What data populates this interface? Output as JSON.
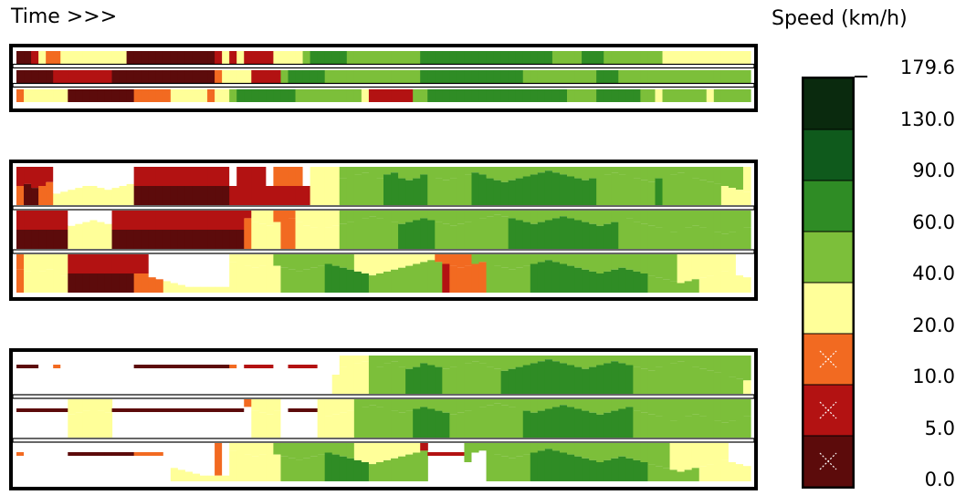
{
  "header": {
    "time_label": "Time >>>"
  },
  "legend": {
    "title": "Speed (km/h)",
    "ticks": [
      "179.6",
      "130.0",
      "90.0",
      "60.0",
      "40.0",
      "20.0",
      "10.0",
      "5.0",
      "0.0"
    ],
    "bins": [
      {
        "min": 130.0,
        "max": 179.6,
        "color": "#0a2a0e",
        "marked": false
      },
      {
        "min": 90.0,
        "max": 130.0,
        "color": "#0f5a1c",
        "marked": false
      },
      {
        "min": 60.0,
        "max": 90.0,
        "color": "#2f8c25",
        "marked": false
      },
      {
        "min": 40.0,
        "max": 60.0,
        "color": "#7cbf3a",
        "marked": false
      },
      {
        "min": 20.0,
        "max": 40.0,
        "color": "#ffff99",
        "marked": false
      },
      {
        "min": 10.0,
        "max": 20.0,
        "color": "#f26a21",
        "marked": true
      },
      {
        "min": 5.0,
        "max": 10.0,
        "color": "#b31212",
        "marked": true
      },
      {
        "min": 0.0,
        "max": 5.0,
        "color": "#5c0b0b",
        "marked": true
      }
    ]
  },
  "chart_data": {
    "type": "heatmap",
    "description_units": "speed bins per time column",
    "palette": {
      "D": "#5c0b0b",
      "R": "#b31212",
      "O": "#f26a21",
      "Y": "#ffff99",
      "L": "#7cbf3a",
      "G": "#2f8c25",
      "K": "#0f5a1c",
      "W": "#ffffff"
    },
    "columns": 100,
    "panels": [
      {
        "name": "panel-1",
        "style": "bands",
        "rows": [
          "DDRYOOYYYYYYYYYDDDDDDDDDDDDRYRYRRRRYYYYLGGGGGLLLLLLLLLLGGGGGGGGGGGGGGGGGGLLLLGGGLLLLLLLLYYYYYYYYYYYYYY",
          "DDDDDRRRRRRRRDDDDDDDDDDDDDDOYYYYRRRRLGGGGGLLLLLLLLLLLLLGGGGGGGGGGGGGGLLLLLLLLLLGGGLLLLLLLLLLLLLLLLLLYY",
          "OYYYYYYDDDDDDDDDOOOOOYYYYYOYYLGGGGGGGGLLLLLLLLLYRRRRRRLLGGGGGGGGGGGGGGGGGGGLLLLGGGGGGLLYLLLLLLYLLLLLLL"
        ]
      },
      {
        "name": "panel-2",
        "style": "profile",
        "rows": [
          {
            "top": "RRRRRWWWWWWWWWWWRRRRRRRRRRRRRWRRRRWOOOOWYYYYLLLLLLLLLLLLLLLLLLLLLLLLLLLLLLLLLLLLLLLLLLLLLLLLLLLLLLLYYYY",
            "bottom": "ODDOOYYYYYYYYYYYDDDDDDDDDDDDDRRRRRRRRRRRYYYYLLLLLLGGGGGGLLLLLLGGGGGGGGGGGGGGGGGLLLLLLLLGLLLLLLLLYYYY",
            "fill": [
              0.0,
              0.45,
              0.55,
              0.5,
              0.4,
              0.7,
              0.65,
              0.6,
              0.55,
              0.5,
              0.5,
              0.55,
              0.6,
              0.55,
              0.5,
              0.45,
              0.0,
              0.0,
              0.0,
              0.0,
              0.0,
              0.0,
              0.0,
              0.0,
              0.0,
              0.0,
              0.0,
              0.0,
              0.0,
              0.0,
              0.0,
              0.0,
              0.0,
              0.0,
              0.0,
              0.0,
              0.0,
              0.0,
              0.0,
              0.0,
              0.0,
              0.0,
              0.0,
              0.0,
              0.3,
              0.25,
              0.2,
              0.15,
              0.25,
              0.3,
              0.2,
              0.15,
              0.3,
              0.35,
              0.3,
              0.2,
              0.25,
              0.3,
              0.35,
              0.3,
              0.25,
              0.2,
              0.15,
              0.2,
              0.3,
              0.35,
              0.4,
              0.35,
              0.3,
              0.25,
              0.2,
              0.15,
              0.1,
              0.15,
              0.2,
              0.25,
              0.3,
              0.35,
              0.3,
              0.25,
              0.2,
              0.15,
              0.2,
              0.25,
              0.3,
              0.35,
              0.4,
              0.3,
              0.25,
              0.2,
              0.15,
              0.25,
              0.3,
              0.35,
              0.4,
              0.45,
              0.5,
              0.55,
              0.6,
              0.65
            ]
          },
          {
            "top": "RRRRRRRWWWWWWRRRRRRRRRRRRRRRRRRRYYYOOOYYYYYYLLLLLLLLLLLLLLLLLLLLLLLLLLLLLLLLLLLLLLLLLLLLLLLLLLLLLLLLLLY",
            "bottom": "DDDDDDDYYYYYYDDDDDDDDDDDDDDDDDDOYYYYOOYYYYYYLLLLLLLLGGGGGLLLLLLLLLLGGGGGGGGGGGGGGGLLLLLLLLLLLLLLLLLLYO",
            "fill": [
              0.0,
              0.0,
              0.0,
              0.0,
              0.0,
              0.0,
              0.0,
              0.4,
              0.35,
              0.3,
              0.25,
              0.3,
              0.35,
              0.0,
              0.0,
              0.0,
              0.0,
              0.0,
              0.0,
              0.0,
              0.0,
              0.0,
              0.0,
              0.0,
              0.0,
              0.0,
              0.0,
              0.0,
              0.0,
              0.0,
              0.0,
              0.2,
              0.3,
              0.35,
              0.4,
              0.3,
              0.25,
              0.2,
              0.3,
              0.4,
              0.45,
              0.5,
              0.45,
              0.4,
              0.35,
              0.3,
              0.25,
              0.2,
              0.15,
              0.2,
              0.25,
              0.3,
              0.35,
              0.3,
              0.25,
              0.2,
              0.25,
              0.3,
              0.35,
              0.4,
              0.35,
              0.3,
              0.25,
              0.2,
              0.15,
              0.1,
              0.15,
              0.2,
              0.25,
              0.3,
              0.35,
              0.3,
              0.25,
              0.2,
              0.15,
              0.2,
              0.25,
              0.3,
              0.35,
              0.4,
              0.35,
              0.3,
              0.25,
              0.2,
              0.3,
              0.35,
              0.4,
              0.45,
              0.5,
              0.55,
              0.5,
              0.45,
              0.4,
              0.45,
              0.5,
              0.55,
              0.6,
              0.55,
              0.5,
              0.45
            ]
          },
          {
            "top": "OYYYYYYRRRRRRRRRRRWWWWWWWWWWWYYYYYYLLLLLLLLLLLYYYYYYYYYYYOOOOOLLLLLLLLLLLLLLLLLLLLLLLLLLLLYYYYYYYYWWWWW",
            "bottom": "OYYYYYYDDDDDDDDDOOOOYYYYYYYYYYYYYYYYLLLLLLGGGGGGLLLLLLLLLLROOOOOLLLLLLGGGGGGGGGGGGGGGGLLLLLLLYYYYYYYYYYYY",
            "fill": [
              0.4,
              0.45,
              0.5,
              0.45,
              0.4,
              0.5,
              0.55,
              0.0,
              0.0,
              0.0,
              0.0,
              0.0,
              0.0,
              0.0,
              0.0,
              0.0,
              0.0,
              0.0,
              0.6,
              0.65,
              0.7,
              0.75,
              0.8,
              0.85,
              0.85,
              0.85,
              0.85,
              0.85,
              0.85,
              0.2,
              0.25,
              0.3,
              0.35,
              0.3,
              0.25,
              0.3,
              0.35,
              0.4,
              0.45,
              0.4,
              0.35,
              0.3,
              0.25,
              0.3,
              0.35,
              0.4,
              0.45,
              0.5,
              0.55,
              0.5,
              0.45,
              0.4,
              0.35,
              0.3,
              0.25,
              0.2,
              0.15,
              0.2,
              0.25,
              0.3,
              0.35,
              0.3,
              0.25,
              0.2,
              0.25,
              0.3,
              0.35,
              0.4,
              0.35,
              0.3,
              0.25,
              0.2,
              0.15,
              0.2,
              0.25,
              0.3,
              0.35,
              0.4,
              0.45,
              0.5,
              0.45,
              0.4,
              0.35,
              0.4,
              0.45,
              0.5,
              0.55,
              0.6,
              0.65,
              0.7,
              0.75,
              0.7,
              0.65,
              0.6,
              0.55,
              0.5,
              0.45,
              0.5,
              0.55,
              0.6
            ]
          }
        ]
      },
      {
        "name": "panel-3",
        "style": "profile-thin",
        "rows": [
          {
            "top": "DDDWWOWWWWWWWWWWDDDDDDDDDDDDDOWRRRRWWRRRRWWWYYYYLLLLLLLLLLLLLLLLLLLLLLLLLLLLLLLLLLLLLLLLLLLLLLLLLLLLYY",
            "bottom": "WWWWWWWWWWWWWWWWWWWWWWWWWWWWWWWWWWWWWWWWWWWYYYYYLLLLLGGGGGLLLLLLLLGGGGGGGGGGGGGGGGGGLLLLLLLLLLLLLLLYYY",
            "fill": [
              0.0,
              0.0,
              0.0,
              0.0,
              0.0,
              0.0,
              0.0,
              0.0,
              0.0,
              0.0,
              0.0,
              0.0,
              0.0,
              0.0,
              0.0,
              0.0,
              0.0,
              0.0,
              0.0,
              0.0,
              0.0,
              0.0,
              0.0,
              0.0,
              0.0,
              0.0,
              0.0,
              0.0,
              0.0,
              0.0,
              0.0,
              0.0,
              0.0,
              0.0,
              0.0,
              0.0,
              0.0,
              0.0,
              0.0,
              0.0,
              0.0,
              0.0,
              0.0,
              0.0,
              0.3,
              0.25,
              0.2,
              0.15,
              0.25,
              0.3,
              0.2,
              0.15,
              0.3,
              0.35,
              0.3,
              0.2,
              0.25,
              0.3,
              0.35,
              0.3,
              0.25,
              0.2,
              0.15,
              0.2,
              0.3,
              0.35,
              0.4,
              0.35,
              0.3,
              0.25,
              0.2,
              0.15,
              0.1,
              0.15,
              0.2,
              0.25,
              0.3,
              0.35,
              0.3,
              0.25,
              0.2,
              0.15,
              0.2,
              0.25,
              0.3,
              0.35,
              0.4,
              0.3,
              0.25,
              0.2,
              0.15,
              0.25,
              0.3,
              0.35,
              0.4,
              0.45,
              0.5,
              0.55,
              0.6,
              0.65
            ],
            "line_row": true
          },
          {
            "top": "DDDDDDDYYYYYYDDDDDDDDDDDDDDDDDDOYYYYWDDDDYYYYYLLLLLLLLLLLLLLLLLLLLLLLLLLLLLLLLLLLLLLLLLLLLLLLLLLLLLLLO",
            "bottom": "WWWWWWWYYYYYYWWWWWWWWWWWWWWWWWWWYYYYWWWWWYYYYYLLLLLLLLGGGGGLLLLLLLLLLGGGGGGGGGGGGGGGLLLLLLLLLLLLLLLLLLYW",
            "fill": [
              0.0,
              0.0,
              0.0,
              0.0,
              0.0,
              0.0,
              0.0,
              0.4,
              0.35,
              0.3,
              0.25,
              0.3,
              0.35,
              0.0,
              0.0,
              0.0,
              0.0,
              0.0,
              0.0,
              0.0,
              0.0,
              0.0,
              0.0,
              0.0,
              0.0,
              0.0,
              0.0,
              0.0,
              0.0,
              0.0,
              0.0,
              0.2,
              0.3,
              0.35,
              0.4,
              0.3,
              0.0,
              0.0,
              0.0,
              0.0,
              0.0,
              0.5,
              0.45,
              0.4,
              0.35,
              0.3,
              0.25,
              0.2,
              0.15,
              0.2,
              0.25,
              0.3,
              0.35,
              0.3,
              0.25,
              0.2,
              0.25,
              0.3,
              0.35,
              0.4,
              0.35,
              0.3,
              0.25,
              0.2,
              0.15,
              0.1,
              0.15,
              0.2,
              0.25,
              0.3,
              0.35,
              0.3,
              0.25,
              0.2,
              0.15,
              0.2,
              0.25,
              0.3,
              0.35,
              0.4,
              0.35,
              0.3,
              0.25,
              0.2,
              0.3,
              0.35,
              0.4,
              0.45,
              0.5,
              0.55,
              0.5,
              0.45,
              0.4,
              0.45,
              0.5,
              0.55,
              0.6,
              0.55,
              0.5,
              0.45
            ],
            "line_row": true
          },
          {
            "top": "OWWWWWWDDDDDDDDDOOOOWWWWWWWOWYYYYYYLLLLLLLLLLLYYYYYYYYYRRRRRRLLLLLLLLLLLLLLLLLLLLLLLLLLLLYYYYYYYYWWWWWW",
            "bottom": "WWWWWWWWWWWWWWWWWWWWWYYYYYYYYYYYYYYYLLLLLLGGGGGGLLLLLLLLLLWWWWWWLLLLLLGGGGGGGGGGGGGGGGLLLLLLLYYYYYYYYYYYY",
            "fill": [
              0.0,
              0.0,
              0.0,
              0.0,
              0.0,
              0.0,
              0.0,
              0.0,
              0.0,
              0.0,
              0.0,
              0.0,
              0.0,
              0.0,
              0.0,
              0.0,
              0.0,
              0.0,
              0.0,
              0.0,
              0.6,
              0.65,
              0.7,
              0.75,
              0.8,
              0.85,
              0.85,
              0.85,
              0.85,
              0.2,
              0.25,
              0.3,
              0.35,
              0.3,
              0.25,
              0.3,
              0.35,
              0.4,
              0.45,
              0.4,
              0.35,
              0.3,
              0.25,
              0.3,
              0.35,
              0.4,
              0.45,
              0.5,
              0.55,
              0.5,
              0.45,
              0.4,
              0.35,
              0.3,
              0.25,
              0.2,
              0.0,
              0.0,
              0.0,
              0.0,
              0.0,
              0.0,
              0.25,
              0.2,
              0.25,
              0.3,
              0.35,
              0.4,
              0.35,
              0.3,
              0.25,
              0.2,
              0.15,
              0.2,
              0.25,
              0.3,
              0.35,
              0.4,
              0.45,
              0.5,
              0.45,
              0.4,
              0.35,
              0.4,
              0.45,
              0.5,
              0.55,
              0.6,
              0.65,
              0.7,
              0.75,
              0.7,
              0.65,
              0.6,
              0.55,
              0.5,
              0.45,
              0.5,
              0.55,
              0.6
            ],
            "line_row": true
          }
        ]
      }
    ]
  }
}
